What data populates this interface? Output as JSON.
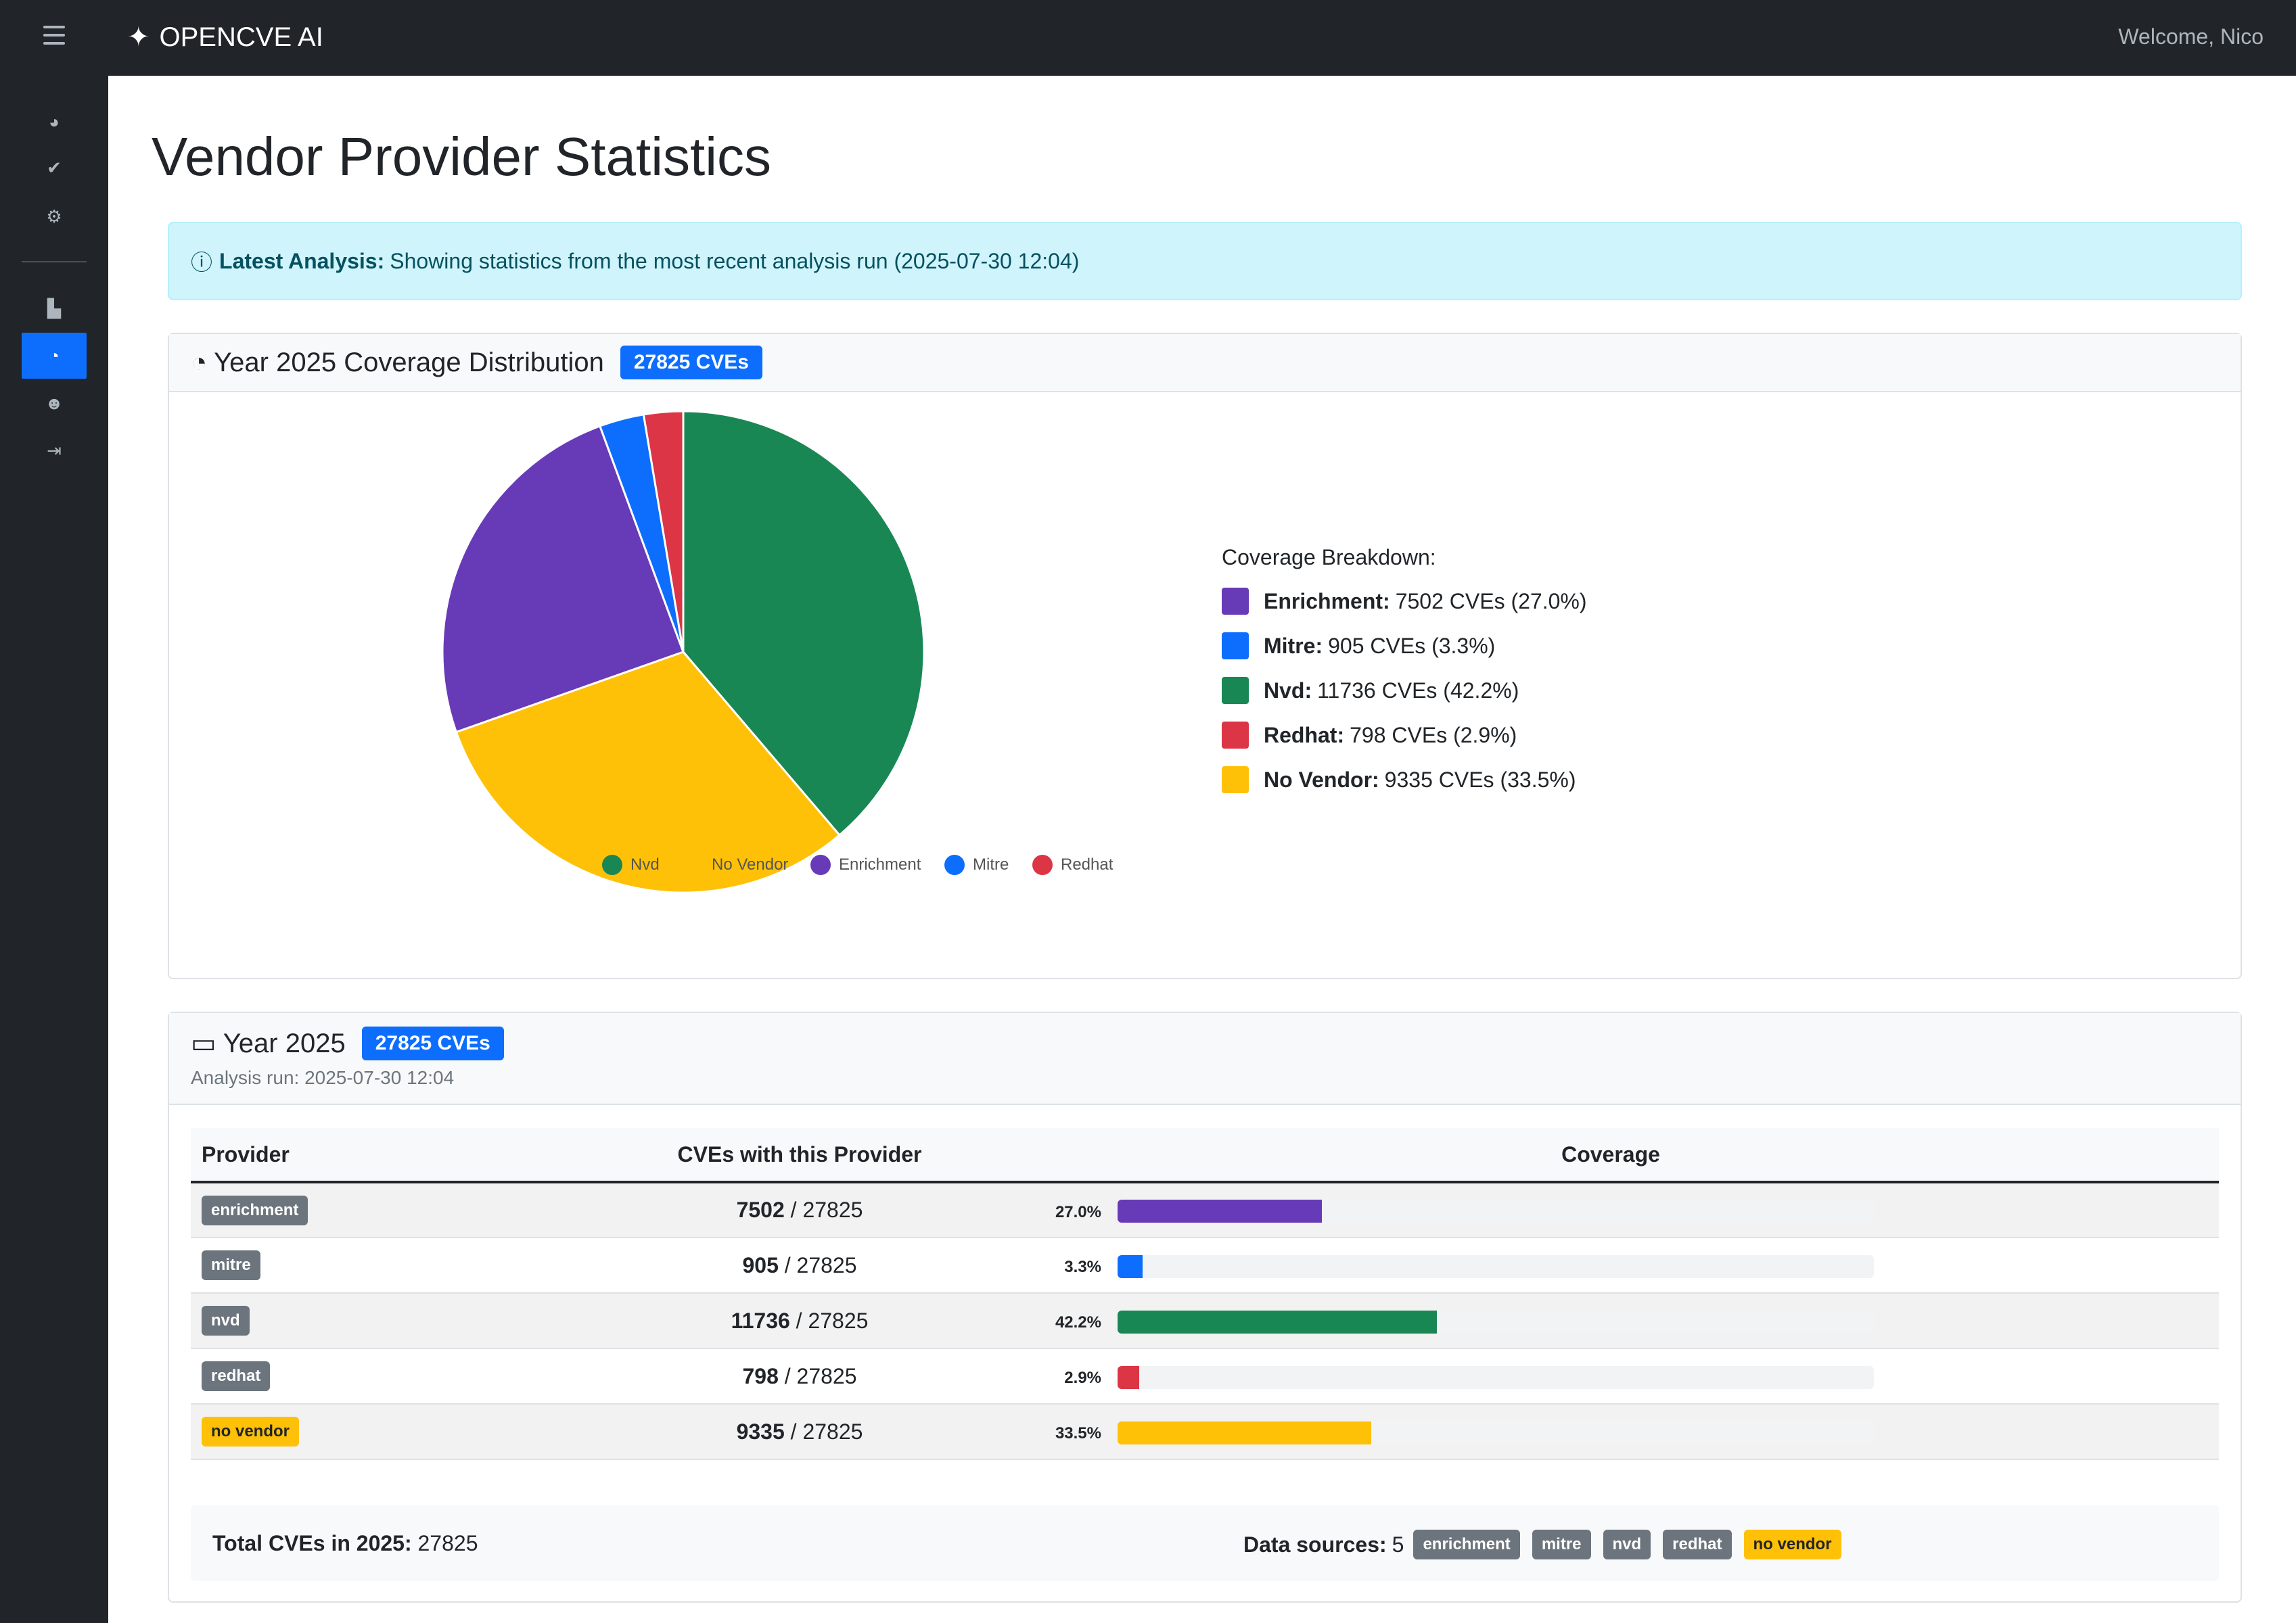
{
  "brand": {
    "name": "OPENCVE AI",
    "welcome": "Welcome, Nico"
  },
  "nav_icons": [
    "dashboard-icon",
    "check-circle-icon",
    "gears-icon",
    "bar-chart-icon",
    "pie-chart-icon",
    "user-gear-icon",
    "logout-icon"
  ],
  "page": {
    "title": "Vendor Provider Statistics"
  },
  "alert": {
    "label": "Latest Analysis:",
    "text": "Showing statistics from the most recent analysis run (2025-07-30 12:04)"
  },
  "coverage_card": {
    "title": "Year 2025 Coverage Distribution",
    "badge": "27825 CVEs",
    "breakdown_title": "Coverage Breakdown:"
  },
  "chart_data": {
    "type": "pie",
    "categories": [
      "Nvd",
      "No Vendor",
      "Enrichment",
      "Mitre",
      "Redhat"
    ],
    "values": [
      11736,
      9335,
      7502,
      905,
      798
    ],
    "colors": [
      "#198754",
      "#ffc107",
      "#673ab7",
      "#0d6efd",
      "#dc3545"
    ]
  },
  "breakdown": [
    {
      "name": "Enrichment:",
      "text": "7502 CVEs (27.0%)",
      "color": "#673ab7"
    },
    {
      "name": "Mitre:",
      "text": "905 CVEs (3.3%)",
      "color": "#0d6efd"
    },
    {
      "name": "Nvd:",
      "text": "11736 CVEs (42.2%)",
      "color": "#198754"
    },
    {
      "name": "Redhat:",
      "text": "798 CVEs (2.9%)",
      "color": "#dc3545"
    },
    {
      "name": "No Vendor:",
      "text": "9335 CVEs (33.5%)",
      "color": "#ffc107"
    }
  ],
  "year_card": {
    "title": "Year 2025",
    "badge": "27825 CVEs",
    "analysis_run": "Analysis run: 2025-07-30 12:04"
  },
  "table": {
    "headers": [
      "Provider",
      "CVEs with this Provider",
      "Coverage"
    ],
    "rows": [
      {
        "provider": "enrichment",
        "count": "7502",
        "total": " / 27825",
        "pct": "27.0%",
        "fraction": 0.27,
        "color": "#673ab7",
        "badge": "gray"
      },
      {
        "provider": "mitre",
        "count": "905",
        "total": " / 27825",
        "pct": "3.3%",
        "fraction": 0.033,
        "color": "#0d6efd",
        "badge": "gray"
      },
      {
        "provider": "nvd",
        "count": "11736",
        "total": " / 27825",
        "pct": "42.2%",
        "fraction": 0.422,
        "color": "#198754",
        "badge": "gray"
      },
      {
        "provider": "redhat",
        "count": "798",
        "total": " / 27825",
        "pct": "2.9%",
        "fraction": 0.029,
        "color": "#dc3545",
        "badge": "gray"
      },
      {
        "provider": "no vendor",
        "count": "9335",
        "total": " / 27825",
        "pct": "33.5%",
        "fraction": 0.335,
        "color": "#ffc107",
        "badge": "warn"
      }
    ]
  },
  "footer": {
    "total_label": "Total CVEs in 2025:",
    "total_value": "27825",
    "sources_label": "Data sources:",
    "sources_value": "5",
    "sources": [
      {
        "name": "enrichment",
        "badge": "gray"
      },
      {
        "name": "mitre",
        "badge": "gray"
      },
      {
        "name": "nvd",
        "badge": "gray"
      },
      {
        "name": "redhat",
        "badge": "gray"
      },
      {
        "name": "no vendor",
        "badge": "warn"
      }
    ]
  }
}
